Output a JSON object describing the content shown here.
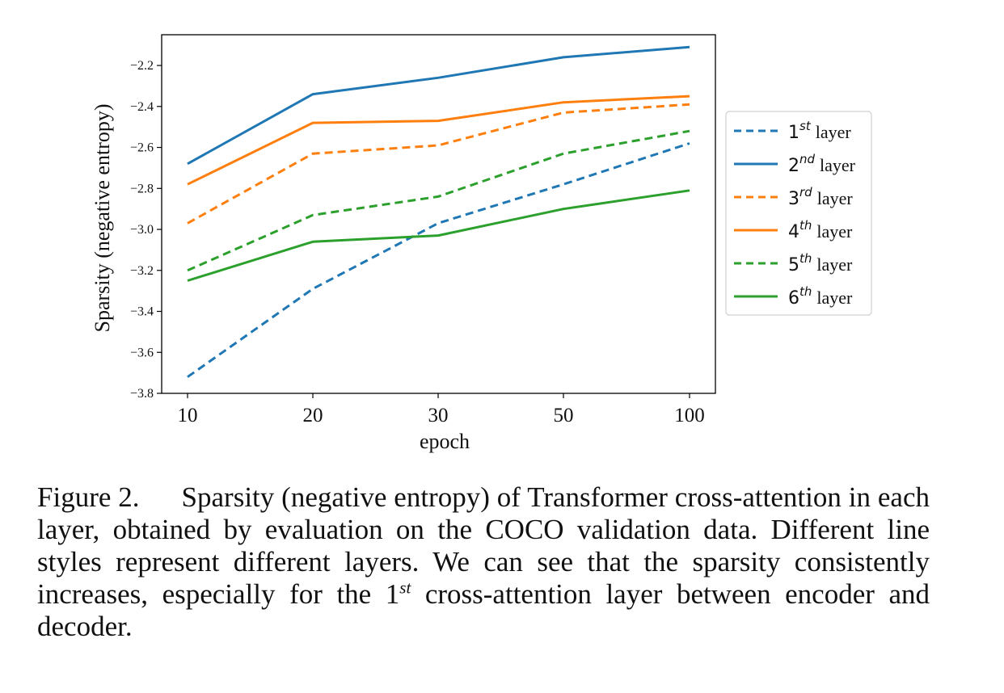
{
  "chart_data": {
    "type": "line",
    "xlabel": "epoch",
    "ylabel": "Sparsity (negative entropy)",
    "x": [
      "10",
      "20",
      "30",
      "50",
      "100"
    ],
    "ylim": [
      -3.8,
      -2.05
    ],
    "yticks": [
      "−2.2",
      "−2.4",
      "−2.6",
      "−2.8",
      "−3.0",
      "−3.2",
      "−3.4",
      "−3.6",
      "−3.8"
    ],
    "ytick_values": [
      -2.2,
      -2.4,
      -2.6,
      -2.8,
      -3.0,
      -3.2,
      -3.4,
      -3.6,
      -3.8
    ],
    "grid": false,
    "legend_position": "outside-right",
    "series": [
      {
        "name": "1st layer",
        "base": "1",
        "sup": "st",
        "suffix": "layer",
        "color": "#1f77b4",
        "style": "dashed",
        "values": [
          -3.72,
          -3.29,
          -2.97,
          -2.78,
          -2.58
        ]
      },
      {
        "name": "2nd layer",
        "base": "2",
        "sup": "nd",
        "suffix": "layer",
        "color": "#1f77b4",
        "style": "solid",
        "values": [
          -2.68,
          -2.34,
          -2.26,
          -2.16,
          -2.11
        ]
      },
      {
        "name": "3rd layer",
        "base": "3",
        "sup": "rd",
        "suffix": "layer",
        "color": "#ff7f0e",
        "style": "dashed",
        "values": [
          -2.97,
          -2.63,
          -2.59,
          -2.43,
          -2.39
        ]
      },
      {
        "name": "4th layer",
        "base": "4",
        "sup": "th",
        "suffix": "layer",
        "color": "#ff7f0e",
        "style": "solid",
        "values": [
          -2.78,
          -2.48,
          -2.47,
          -2.38,
          -2.35
        ]
      },
      {
        "name": "5th layer",
        "base": "5",
        "sup": "th",
        "suffix": "layer",
        "color": "#2ca02c",
        "style": "dashed",
        "values": [
          -3.2,
          -2.93,
          -2.84,
          -2.63,
          -2.52
        ]
      },
      {
        "name": "6th layer",
        "base": "6",
        "sup": "th",
        "suffix": "layer",
        "color": "#2ca02c",
        "style": "solid",
        "values": [
          -3.25,
          -3.06,
          -3.03,
          -2.9,
          -2.81
        ]
      }
    ]
  },
  "caption": {
    "label": "Figure 2.",
    "text_before_sup": "Sparsity (negative entropy) of Transformer cross-attention in each layer, obtained by evaluation on the COCO validation data. Different line styles represent different layers. We can see that the sparsity consistently increases, especially for the 1",
    "sup": "st",
    "text_after_sup": " cross-attention layer between encoder and decoder."
  }
}
